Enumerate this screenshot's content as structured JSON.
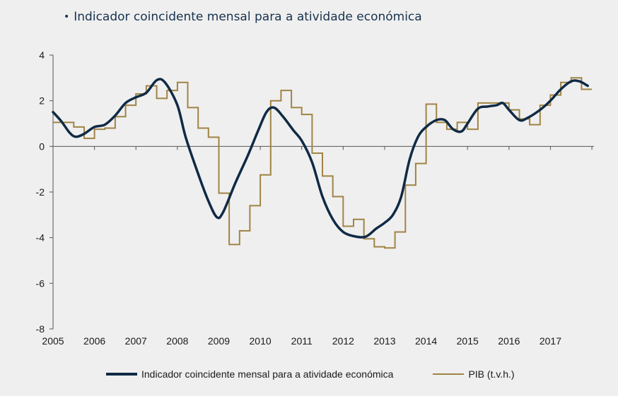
{
  "title": "Indicador coincidente mensal para a atividade económica",
  "chart_data": {
    "type": "line",
    "title": "Indicador coincidente mensal para a atividade económica",
    "xlabel": "",
    "ylabel": "",
    "xlim": [
      2005.0,
      2018.05
    ],
    "ylim": [
      -8,
      4
    ],
    "yticks": [
      4,
      2,
      0,
      -2,
      -4,
      -6,
      -8
    ],
    "xticks": [
      "2005",
      "2006",
      "2007",
      "2008",
      "2009",
      "2010",
      "2011",
      "2012",
      "2013",
      "2014",
      "2015",
      "2016",
      "2017"
    ],
    "grid": false,
    "legend_position": "bottom",
    "series": [
      {
        "name": "Indicador coincidente mensal para a atividade económica",
        "color": "#0f2a45",
        "style": "smooth",
        "points": [
          [
            2005.0,
            1.5
          ],
          [
            2005.2,
            1.1
          ],
          [
            2005.4,
            0.6
          ],
          [
            2005.55,
            0.42
          ],
          [
            2005.75,
            0.55
          ],
          [
            2006.0,
            0.85
          ],
          [
            2006.25,
            0.95
          ],
          [
            2006.5,
            1.35
          ],
          [
            2006.75,
            1.9
          ],
          [
            2007.0,
            2.15
          ],
          [
            2007.25,
            2.35
          ],
          [
            2007.5,
            2.9
          ],
          [
            2007.7,
            2.8
          ],
          [
            2008.0,
            1.8
          ],
          [
            2008.2,
            0.4
          ],
          [
            2008.5,
            -1.2
          ],
          [
            2008.75,
            -2.4
          ],
          [
            2008.95,
            -3.1
          ],
          [
            2009.1,
            -2.9
          ],
          [
            2009.4,
            -1.6
          ],
          [
            2009.7,
            -0.4
          ],
          [
            2009.95,
            0.7
          ],
          [
            2010.15,
            1.5
          ],
          [
            2010.33,
            1.7
          ],
          [
            2010.55,
            1.3
          ],
          [
            2010.8,
            0.7
          ],
          [
            2011.0,
            0.25
          ],
          [
            2011.25,
            -0.7
          ],
          [
            2011.5,
            -2.2
          ],
          [
            2011.75,
            -3.2
          ],
          [
            2012.0,
            -3.75
          ],
          [
            2012.3,
            -3.95
          ],
          [
            2012.55,
            -3.95
          ],
          [
            2012.8,
            -3.6
          ],
          [
            2013.0,
            -3.35
          ],
          [
            2013.2,
            -3.0
          ],
          [
            2013.4,
            -2.2
          ],
          [
            2013.6,
            -0.6
          ],
          [
            2013.8,
            0.4
          ],
          [
            2014.0,
            0.85
          ],
          [
            2014.25,
            1.15
          ],
          [
            2014.45,
            1.15
          ],
          [
            2014.65,
            0.75
          ],
          [
            2014.85,
            0.65
          ],
          [
            2015.0,
            1.0
          ],
          [
            2015.25,
            1.65
          ],
          [
            2015.5,
            1.75
          ],
          [
            2015.7,
            1.8
          ],
          [
            2015.85,
            1.9
          ],
          [
            2016.0,
            1.6
          ],
          [
            2016.25,
            1.15
          ],
          [
            2016.45,
            1.25
          ],
          [
            2016.75,
            1.6
          ],
          [
            2017.0,
            2.0
          ],
          [
            2017.25,
            2.5
          ],
          [
            2017.5,
            2.85
          ],
          [
            2017.7,
            2.85
          ],
          [
            2017.9,
            2.65
          ]
        ]
      },
      {
        "name": "PIB (t.v.h.)",
        "color": "#a08445",
        "style": "step",
        "quarterly_values": [
          1.05,
          1.05,
          0.85,
          0.35,
          0.75,
          0.8,
          1.3,
          1.8,
          2.3,
          2.65,
          2.1,
          2.45,
          2.8,
          1.7,
          0.8,
          0.4,
          -2.05,
          -4.3,
          -3.7,
          -2.6,
          -1.25,
          2.0,
          2.45,
          1.7,
          1.4,
          -0.3,
          -1.3,
          -2.2,
          -3.5,
          -3.2,
          -4.05,
          -4.4,
          -4.45,
          -3.75,
          -1.7,
          -0.75,
          1.85,
          1.05,
          0.75,
          1.05,
          0.75,
          1.9,
          1.9,
          1.9,
          1.6,
          1.2,
          0.95,
          1.8,
          2.25,
          2.8,
          3.0,
          2.5
        ]
      }
    ]
  }
}
